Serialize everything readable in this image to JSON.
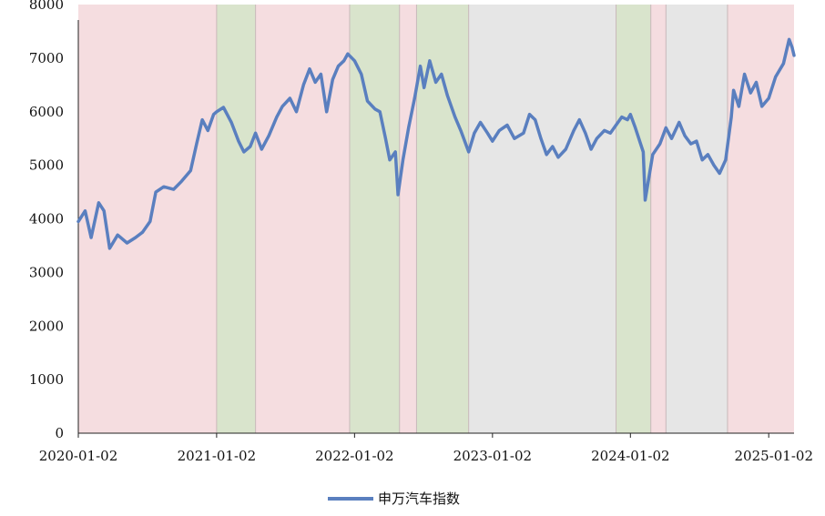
{
  "chart_data": {
    "type": "line",
    "title": "",
    "xlabel": "",
    "ylabel": "",
    "ylim": [
      0,
      8000
    ],
    "y_ticks": [
      "0",
      "1000",
      "2000",
      "3000",
      "4000",
      "5000",
      "6000",
      "7000",
      "8000"
    ],
    "x_ticks": [
      "2020-01-02",
      "2021-01-02",
      "2022-01-02",
      "2023-01-02",
      "2024-01-02",
      "2025-01-02"
    ],
    "xlim": [
      "2020-01-02",
      "2025-03-10"
    ],
    "grid": false,
    "legend": {
      "position": "bottom-center",
      "entries": [
        "申万汽车指数"
      ]
    },
    "series": [
      {
        "name": "申万汽车指数",
        "color": "#5a7fbf",
        "points": [
          [
            "2020-01-02",
            3950
          ],
          [
            "2020-01-20",
            4150
          ],
          [
            "2020-02-05",
            3650
          ],
          [
            "2020-02-25",
            4300
          ],
          [
            "2020-03-10",
            4150
          ],
          [
            "2020-03-25",
            3450
          ],
          [
            "2020-04-15",
            3700
          ],
          [
            "2020-05-10",
            3550
          ],
          [
            "2020-06-01",
            3650
          ],
          [
            "2020-06-20",
            3750
          ],
          [
            "2020-07-10",
            3950
          ],
          [
            "2020-07-25",
            4500
          ],
          [
            "2020-08-15",
            4600
          ],
          [
            "2020-09-10",
            4550
          ],
          [
            "2020-10-01",
            4700
          ],
          [
            "2020-10-25",
            4900
          ],
          [
            "2020-11-10",
            5400
          ],
          [
            "2020-11-25",
            5850
          ],
          [
            "2020-12-10",
            5650
          ],
          [
            "2020-12-25",
            5950
          ],
          [
            "2021-01-02",
            6000
          ],
          [
            "2021-01-20",
            6080
          ],
          [
            "2021-02-10",
            5800
          ],
          [
            "2021-03-01",
            5450
          ],
          [
            "2021-03-15",
            5250
          ],
          [
            "2021-04-01",
            5350
          ],
          [
            "2021-04-15",
            5600
          ],
          [
            "2021-05-01",
            5300
          ],
          [
            "2021-05-20",
            5550
          ],
          [
            "2021-06-10",
            5900
          ],
          [
            "2021-06-25",
            6100
          ],
          [
            "2021-07-15",
            6250
          ],
          [
            "2021-08-01",
            6000
          ],
          [
            "2021-08-20",
            6500
          ],
          [
            "2021-09-05",
            6800
          ],
          [
            "2021-09-20",
            6550
          ],
          [
            "2021-10-05",
            6700
          ],
          [
            "2021-10-20",
            6000
          ],
          [
            "2021-11-05",
            6600
          ],
          [
            "2021-11-20",
            6850
          ],
          [
            "2021-12-05",
            6950
          ],
          [
            "2021-12-15",
            7080
          ],
          [
            "2022-01-02",
            6950
          ],
          [
            "2022-01-20",
            6700
          ],
          [
            "2022-02-05",
            6200
          ],
          [
            "2022-02-25",
            6050
          ],
          [
            "2022-03-10",
            6000
          ],
          [
            "2022-03-25",
            5500
          ],
          [
            "2022-04-05",
            5100
          ],
          [
            "2022-04-20",
            5250
          ],
          [
            "2022-04-27",
            4450
          ],
          [
            "2022-05-10",
            5100
          ],
          [
            "2022-05-25",
            5700
          ],
          [
            "2022-06-10",
            6250
          ],
          [
            "2022-06-25",
            6850
          ],
          [
            "2022-07-05",
            6450
          ],
          [
            "2022-07-20",
            6950
          ],
          [
            "2022-08-05",
            6550
          ],
          [
            "2022-08-20",
            6700
          ],
          [
            "2022-09-05",
            6300
          ],
          [
            "2022-09-25",
            5900
          ],
          [
            "2022-10-10",
            5650
          ],
          [
            "2022-10-31",
            5250
          ],
          [
            "2022-11-15",
            5600
          ],
          [
            "2022-12-01",
            5800
          ],
          [
            "2022-12-20",
            5600
          ],
          [
            "2023-01-02",
            5450
          ],
          [
            "2023-01-20",
            5650
          ],
          [
            "2023-02-10",
            5750
          ],
          [
            "2023-03-01",
            5500
          ],
          [
            "2023-03-25",
            5600
          ],
          [
            "2023-04-10",
            5950
          ],
          [
            "2023-04-25",
            5850
          ],
          [
            "2023-05-10",
            5500
          ],
          [
            "2023-05-25",
            5200
          ],
          [
            "2023-06-10",
            5350
          ],
          [
            "2023-06-25",
            5150
          ],
          [
            "2023-07-15",
            5300
          ],
          [
            "2023-08-05",
            5650
          ],
          [
            "2023-08-20",
            5850
          ],
          [
            "2023-09-05",
            5600
          ],
          [
            "2023-09-20",
            5300
          ],
          [
            "2023-10-05",
            5500
          ],
          [
            "2023-10-25",
            5650
          ],
          [
            "2023-11-10",
            5600
          ],
          [
            "2023-11-25",
            5750
          ],
          [
            "2023-12-10",
            5900
          ],
          [
            "2023-12-25",
            5850
          ],
          [
            "2024-01-02",
            5950
          ],
          [
            "2024-01-15",
            5700
          ],
          [
            "2024-02-05",
            5250
          ],
          [
            "2024-02-10",
            4350
          ],
          [
            "2024-03-01",
            5200
          ],
          [
            "2024-03-20",
            5400
          ],
          [
            "2024-04-05",
            5700
          ],
          [
            "2024-04-20",
            5500
          ],
          [
            "2024-05-10",
            5800
          ],
          [
            "2024-05-25",
            5550
          ],
          [
            "2024-06-10",
            5400
          ],
          [
            "2024-06-25",
            5450
          ],
          [
            "2024-07-10",
            5100
          ],
          [
            "2024-07-25",
            5200
          ],
          [
            "2024-08-10",
            5000
          ],
          [
            "2024-08-25",
            4850
          ],
          [
            "2024-09-10",
            5100
          ],
          [
            "2024-09-25",
            5900
          ],
          [
            "2024-10-01",
            6400
          ],
          [
            "2024-10-15",
            6100
          ],
          [
            "2024-10-30",
            6700
          ],
          [
            "2024-11-15",
            6350
          ],
          [
            "2024-11-30",
            6550
          ],
          [
            "2024-12-15",
            6100
          ],
          [
            "2025-01-02",
            6250
          ],
          [
            "2025-01-20",
            6650
          ],
          [
            "2025-02-10",
            6900
          ],
          [
            "2025-02-25",
            7350
          ],
          [
            "2025-03-05",
            7200
          ],
          [
            "2025-03-10",
            7050
          ]
        ]
      }
    ],
    "shaded_periods": [
      {
        "start": "2020-01-02",
        "end": "2021-01-02",
        "color": "#f5dde0"
      },
      {
        "start": "2021-01-02",
        "end": "2021-04-15",
        "color": "#d9e4cc"
      },
      {
        "start": "2021-04-15",
        "end": "2021-12-20",
        "color": "#f5dde0"
      },
      {
        "start": "2021-12-20",
        "end": "2022-05-01",
        "color": "#d9e4cc"
      },
      {
        "start": "2022-05-01",
        "end": "2022-06-15",
        "color": "#f5dde0"
      },
      {
        "start": "2022-06-15",
        "end": "2022-10-31",
        "color": "#d9e4cc"
      },
      {
        "start": "2022-10-31",
        "end": "2023-11-25",
        "color": "#e6e6e6"
      },
      {
        "start": "2023-11-25",
        "end": "2024-02-25",
        "color": "#d9e4cc"
      },
      {
        "start": "2024-02-25",
        "end": "2024-04-05",
        "color": "#f5dde0"
      },
      {
        "start": "2024-04-05",
        "end": "2024-09-15",
        "color": "#e6e6e6"
      },
      {
        "start": "2024-09-15",
        "end": "2025-03-10",
        "color": "#f5dde0"
      }
    ]
  }
}
